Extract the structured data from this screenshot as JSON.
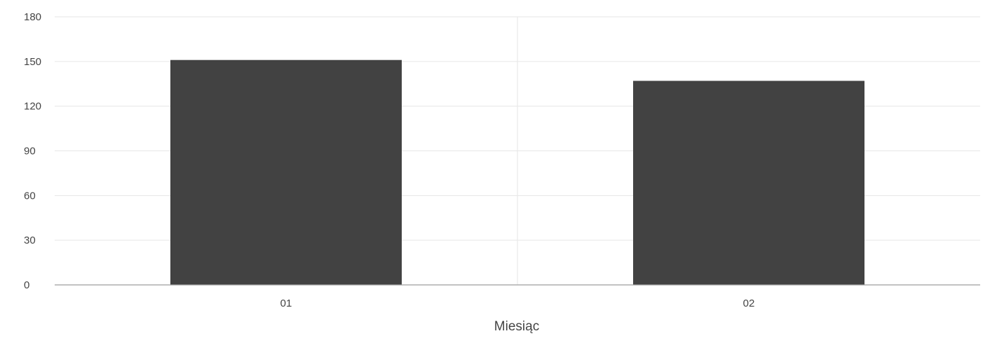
{
  "chart_data": {
    "type": "bar",
    "categories": [
      "01",
      "02"
    ],
    "values": [
      151,
      137
    ],
    "xlabel": "Miesiąc",
    "ylabel": "",
    "ylim": [
      0,
      180
    ],
    "yticks": [
      0,
      30,
      60,
      90,
      120,
      150,
      180
    ],
    "grid": true,
    "legend": "none",
    "colors": {
      "bar": "#424242",
      "grid": "#e6e6e6",
      "axis": "#9e9e9e",
      "text": "#444444"
    }
  }
}
